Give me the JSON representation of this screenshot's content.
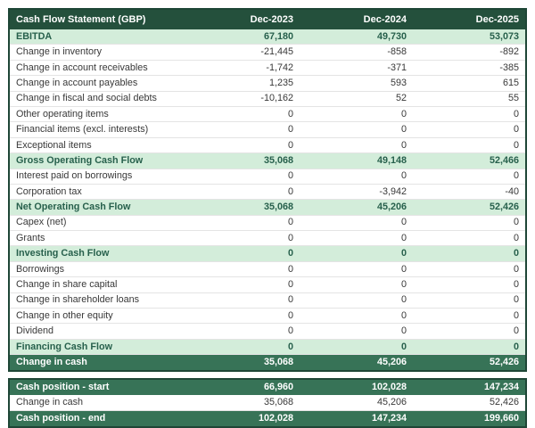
{
  "colors": {
    "header_bg": "#24503c",
    "header_text": "#ffffff",
    "subtotal_bg": "#d3edda",
    "subtotal_text": "#27604c",
    "total_bg": "#377357",
    "body_text": "#383838",
    "outer_border": "#1e4636",
    "row_divider": "#e4e4e4"
  },
  "table": {
    "title": "Cash Flow Statement (GBP)",
    "columns": [
      "Dec-2023",
      "Dec-2024",
      "Dec-2025"
    ],
    "rows": [
      {
        "label": "EBITDA",
        "style": "subtotal",
        "values": [
          "67,180",
          "49,730",
          "53,073"
        ]
      },
      {
        "label": "Change in inventory",
        "style": "normal",
        "values": [
          "-21,445",
          "-858",
          "-892"
        ]
      },
      {
        "label": "Change in account receivables",
        "style": "normal",
        "values": [
          "-1,742",
          "-371",
          "-385"
        ]
      },
      {
        "label": "Change in account payables",
        "style": "normal",
        "values": [
          "1,235",
          "593",
          "615"
        ]
      },
      {
        "label": "Change in fiscal and social debts",
        "style": "normal",
        "values": [
          "-10,162",
          "52",
          "55"
        ]
      },
      {
        "label": "Other operating items",
        "style": "normal",
        "values": [
          "0",
          "0",
          "0"
        ]
      },
      {
        "label": "Financial items (excl. interests)",
        "style": "normal",
        "values": [
          "0",
          "0",
          "0"
        ]
      },
      {
        "label": "Exceptional items",
        "style": "normal",
        "values": [
          "0",
          "0",
          "0"
        ]
      },
      {
        "label": "Gross Operating Cash Flow",
        "style": "subtotal",
        "values": [
          "35,068",
          "49,148",
          "52,466"
        ]
      },
      {
        "label": "Interest paid on borrowings",
        "style": "normal",
        "values": [
          "0",
          "0",
          "0"
        ]
      },
      {
        "label": "Corporation tax",
        "style": "normal",
        "values": [
          "0",
          "-3,942",
          "-40"
        ]
      },
      {
        "label": "Net Operating Cash Flow",
        "style": "subtotal",
        "values": [
          "35,068",
          "45,206",
          "52,426"
        ]
      },
      {
        "label": "Capex (net)",
        "style": "normal",
        "values": [
          "0",
          "0",
          "0"
        ]
      },
      {
        "label": "Grants",
        "style": "normal",
        "values": [
          "0",
          "0",
          "0"
        ]
      },
      {
        "label": "Investing Cash Flow",
        "style": "subtotal",
        "values": [
          "0",
          "0",
          "0"
        ]
      },
      {
        "label": "Borrowings",
        "style": "normal",
        "values": [
          "0",
          "0",
          "0"
        ]
      },
      {
        "label": "Change in share capital",
        "style": "normal",
        "values": [
          "0",
          "0",
          "0"
        ]
      },
      {
        "label": "Change in shareholder loans",
        "style": "normal",
        "values": [
          "0",
          "0",
          "0"
        ]
      },
      {
        "label": "Change in other equity",
        "style": "normal",
        "values": [
          "0",
          "0",
          "0"
        ]
      },
      {
        "label": "Dividend",
        "style": "normal",
        "values": [
          "0",
          "0",
          "0"
        ]
      },
      {
        "label": "Financing Cash Flow",
        "style": "subtotal",
        "values": [
          "0",
          "0",
          "0"
        ]
      },
      {
        "label": "Change in cash",
        "style": "total",
        "values": [
          "35,068",
          "45,206",
          "52,426"
        ]
      }
    ],
    "cash_position": [
      {
        "label": "Cash position - start",
        "style": "total",
        "values": [
          "66,960",
          "102,028",
          "147,234"
        ]
      },
      {
        "label": "Change in cash",
        "style": "normal",
        "values": [
          "35,068",
          "45,206",
          "52,426"
        ]
      },
      {
        "label": "Cash position - end",
        "style": "total",
        "values": [
          "102,028",
          "147,234",
          "199,660"
        ]
      }
    ]
  },
  "chart_data": {
    "type": "table",
    "title": "Cash Flow Statement (GBP)",
    "columns": [
      "Cash Flow Statement (GBP)",
      "Dec-2023",
      "Dec-2024",
      "Dec-2025"
    ],
    "rows": [
      [
        "EBITDA",
        67180,
        49730,
        53073
      ],
      [
        "Change in inventory",
        -21445,
        -858,
        -892
      ],
      [
        "Change in account receivables",
        -1742,
        -371,
        -385
      ],
      [
        "Change in account payables",
        1235,
        593,
        615
      ],
      [
        "Change in fiscal and social debts",
        -10162,
        52,
        55
      ],
      [
        "Other operating items",
        0,
        0,
        0
      ],
      [
        "Financial items (excl. interests)",
        0,
        0,
        0
      ],
      [
        "Exceptional items",
        0,
        0,
        0
      ],
      [
        "Gross Operating Cash Flow",
        35068,
        49148,
        52466
      ],
      [
        "Interest paid on borrowings",
        0,
        0,
        0
      ],
      [
        "Corporation tax",
        0,
        -3942,
        -40
      ],
      [
        "Net Operating Cash Flow",
        35068,
        45206,
        52426
      ],
      [
        "Capex (net)",
        0,
        0,
        0
      ],
      [
        "Grants",
        0,
        0,
        0
      ],
      [
        "Investing Cash Flow",
        0,
        0,
        0
      ],
      [
        "Borrowings",
        0,
        0,
        0
      ],
      [
        "Change in share capital",
        0,
        0,
        0
      ],
      [
        "Change in shareholder loans",
        0,
        0,
        0
      ],
      [
        "Change in other equity",
        0,
        0,
        0
      ],
      [
        "Dividend",
        0,
        0,
        0
      ],
      [
        "Financing Cash Flow",
        0,
        0,
        0
      ],
      [
        "Change in cash",
        35068,
        45206,
        52426
      ],
      [
        "Cash position - start",
        66960,
        102028,
        147234
      ],
      [
        "Change in cash",
        35068,
        45206,
        52426
      ],
      [
        "Cash position - end",
        102028,
        147234,
        199660
      ]
    ]
  }
}
